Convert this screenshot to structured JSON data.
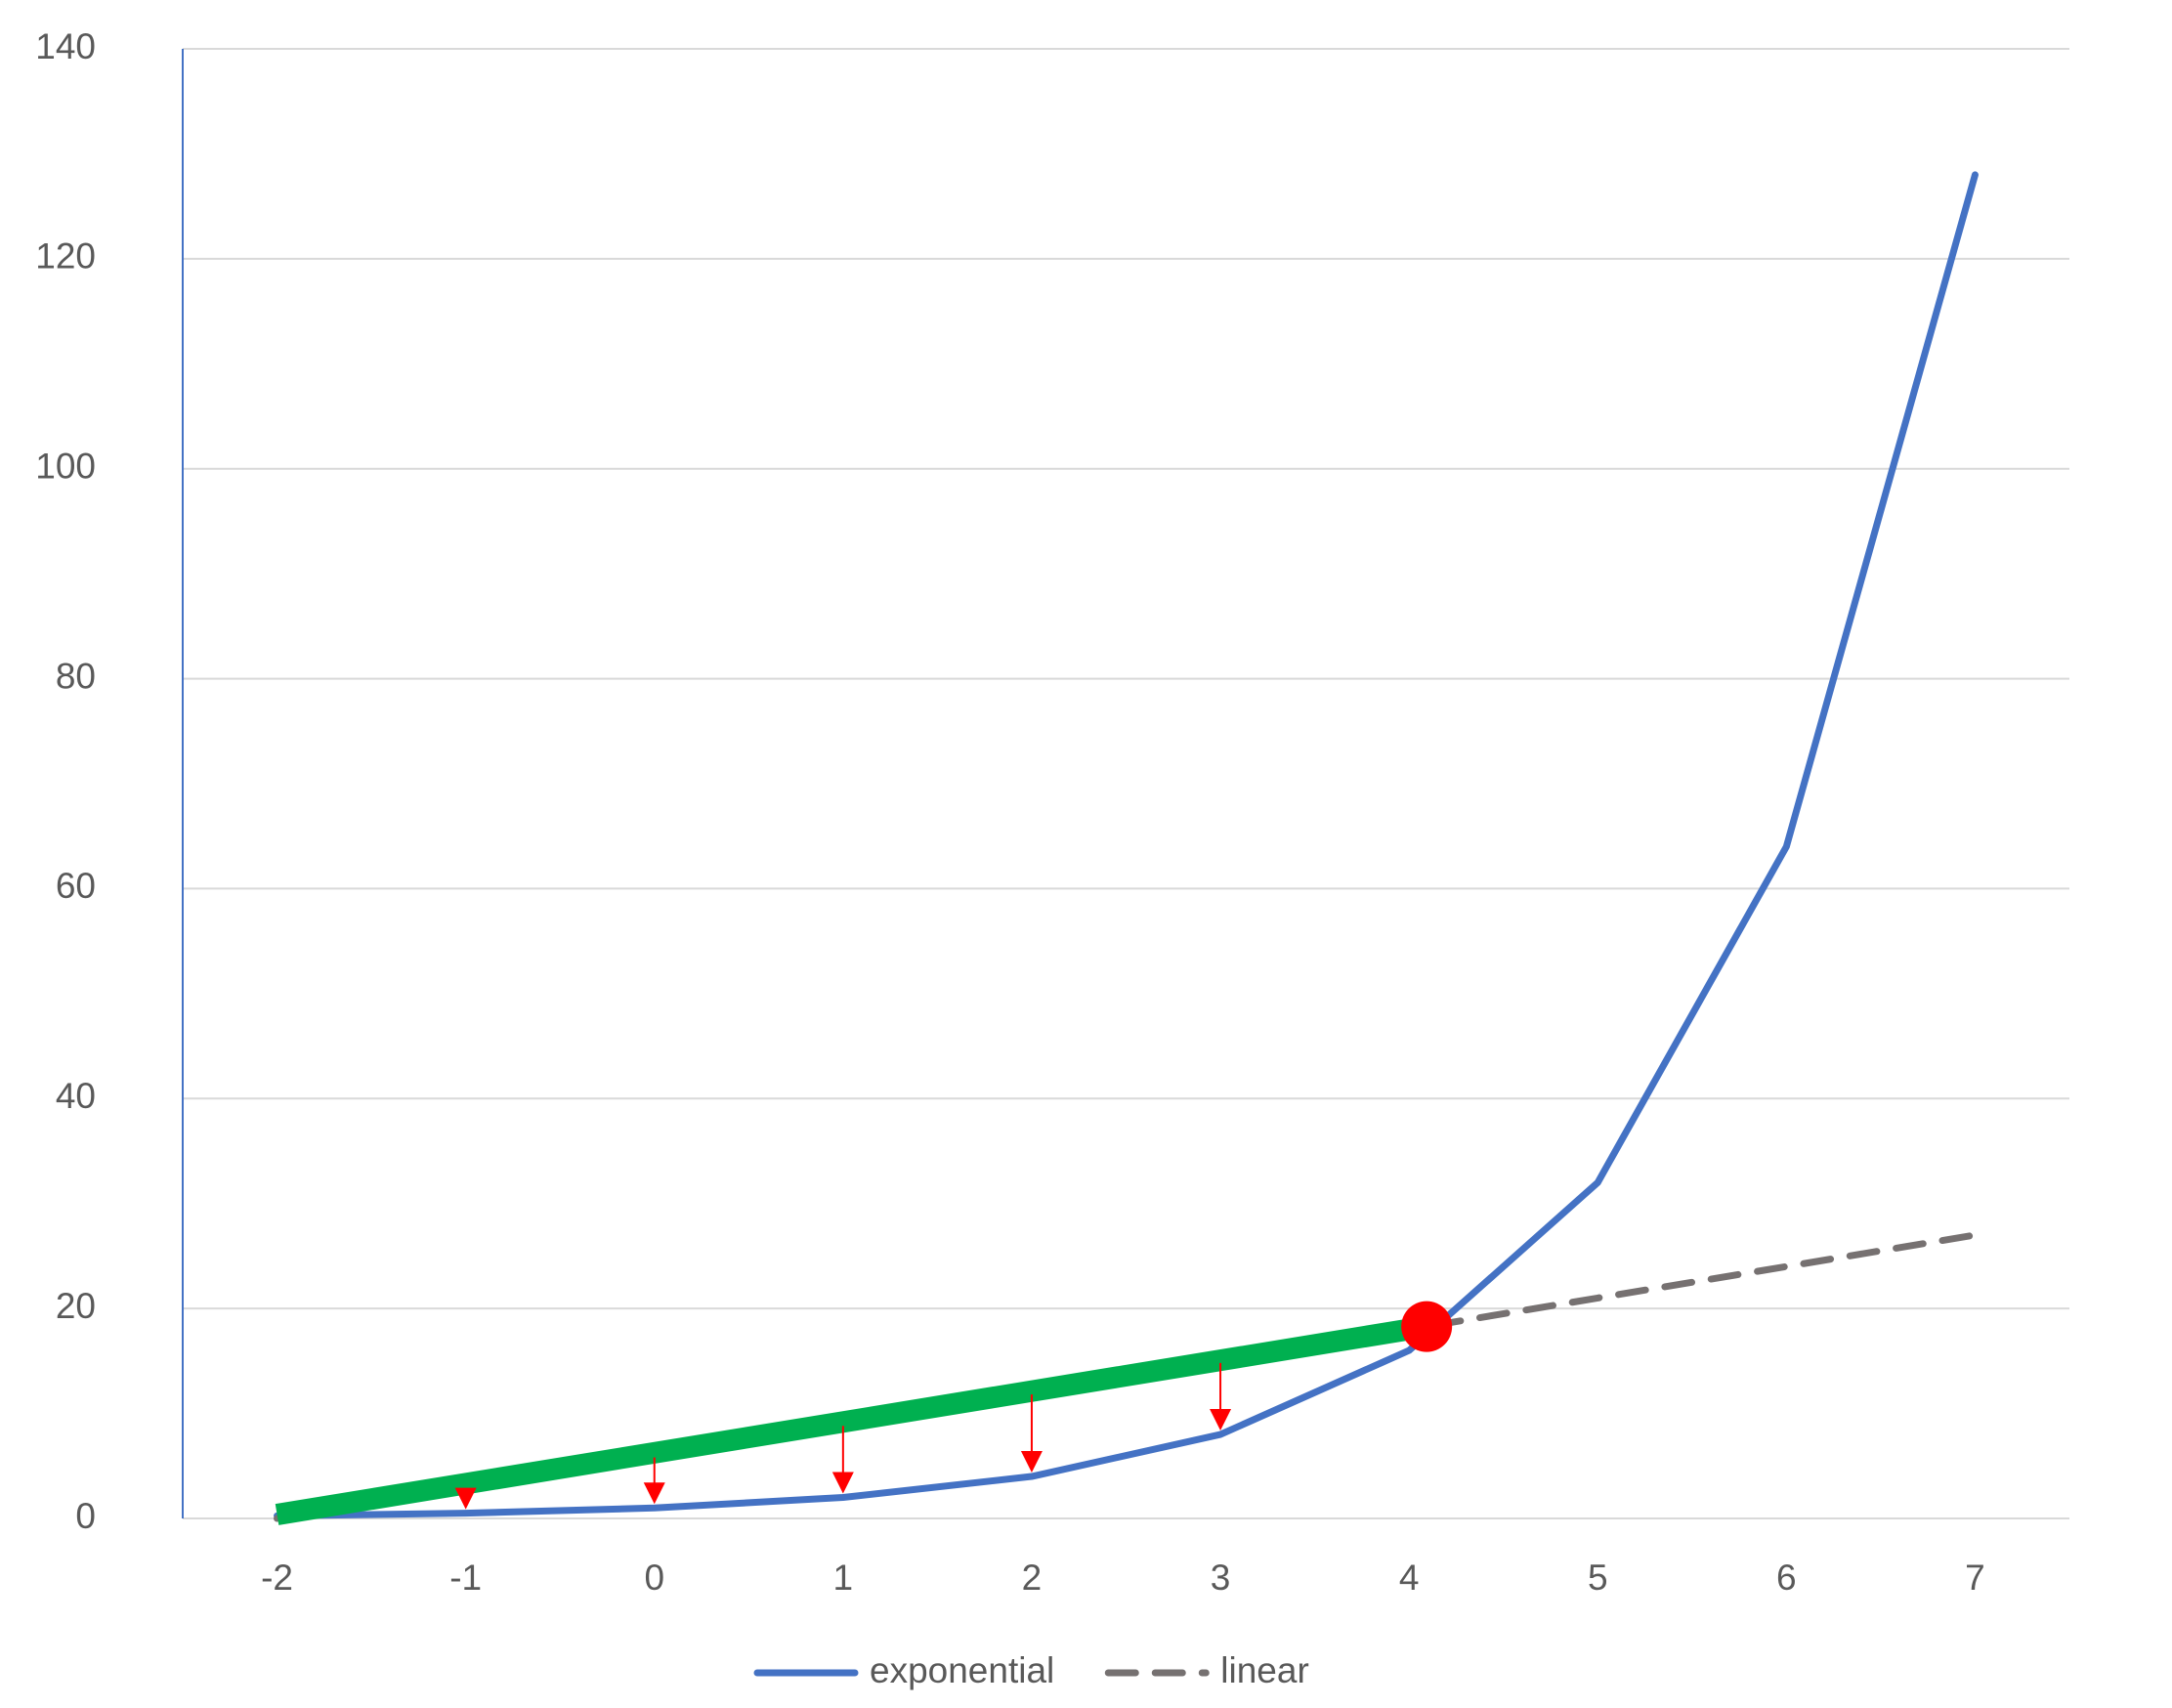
{
  "chart_data": {
    "type": "line",
    "categories": [
      "-2",
      "-1",
      "0",
      "1",
      "2",
      "3",
      "4",
      "5",
      "6",
      "7"
    ],
    "series": [
      {
        "name": "exponential",
        "color": "#4472c4",
        "values": [
          0.25,
          0.5,
          1,
          2,
          4,
          8,
          16,
          32,
          64,
          128
        ]
      },
      {
        "name": "linear",
        "color": "#767171",
        "dashed": true,
        "values": [
          0,
          3,
          6,
          9,
          12,
          15,
          18,
          21,
          24,
          27
        ]
      }
    ],
    "ylim": [
      0,
      140
    ],
    "yticks": [
      0,
      20,
      40,
      60,
      80,
      100,
      120,
      140
    ],
    "grid": true,
    "legend": "bottom"
  }
}
